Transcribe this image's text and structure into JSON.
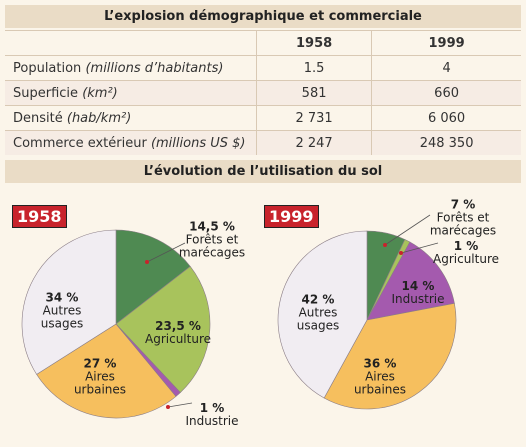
{
  "table": {
    "title": "L’explosion démographique et commerciale",
    "columns": [
      "1958",
      "1999"
    ],
    "rows": [
      {
        "label": "Population",
        "unit": "(millions d’habitants)",
        "cells": [
          "1.5",
          "4"
        ]
      },
      {
        "label": "Superficie",
        "unit": "(km²)",
        "cells": [
          "581",
          "660"
        ]
      },
      {
        "label": "Densité",
        "unit": "(hab/km²)",
        "cells": [
          "2 731",
          "6 060"
        ]
      },
      {
        "label": "Commerce extérieur",
        "unit": "(millions US $)",
        "cells": [
          "2 247",
          "248 350"
        ]
      }
    ]
  },
  "section_title": "L’évolution de l’utilisation du sol",
  "chart_data": [
    {
      "type": "pie",
      "title": "1958",
      "categories": [
        "Forêts et marécages",
        "Agriculture",
        "Industrie",
        "Aires urbaines",
        "Autres usages"
      ],
      "values": [
        14.5,
        23.5,
        1,
        27,
        34
      ],
      "value_labels": [
        "14,5 %",
        "23,5 %",
        "1 %",
        "27 %",
        "34 %"
      ],
      "colors": [
        "#4f8a52",
        "#a8c35c",
        "#a45aae",
        "#f6bf5e",
        "#f1edf2"
      ]
    },
    {
      "type": "pie",
      "title": "1999",
      "categories": [
        "Forêts et marécages",
        "Agriculture",
        "Industrie",
        "Aires urbaines",
        "Autres usages"
      ],
      "values": [
        7,
        1,
        14,
        36,
        42
      ],
      "value_labels": [
        "7 %",
        "1 %",
        "14 %",
        "36 %",
        "42 %"
      ],
      "colors": [
        "#4f8a52",
        "#a8c35c",
        "#a45aae",
        "#f6bf5e",
        "#f1edf2"
      ]
    }
  ]
}
